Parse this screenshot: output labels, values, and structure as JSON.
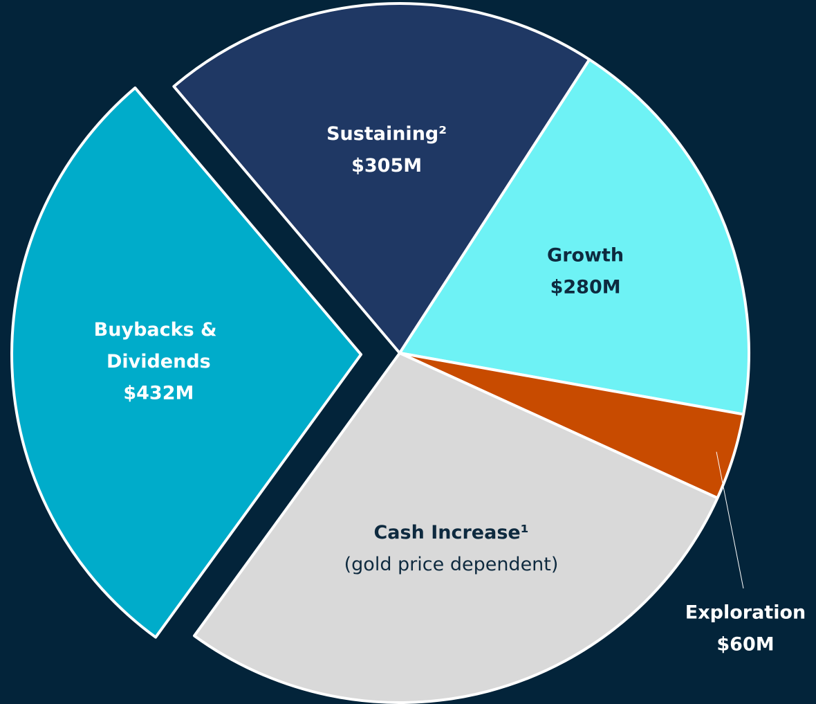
{
  "chart_data": {
    "type": "pie",
    "categories": [
      "Sustaining²",
      "Growth",
      "Exploration",
      "Cash Increase¹",
      "Buybacks & Dividends"
    ],
    "values": [
      305,
      280,
      60,
      423,
      432
    ],
    "value_labels": [
      "$305M",
      "$280M",
      "$60M",
      null,
      "$432M"
    ],
    "notes": [
      null,
      null,
      null,
      "(gold price dependent)",
      null
    ],
    "colors": [
      "#1f3864",
      "#6ef2f5",
      "#c84b00",
      "#d9d9d9",
      "#00acca"
    ],
    "explode": [
      false,
      false,
      false,
      false,
      true
    ]
  }
}
